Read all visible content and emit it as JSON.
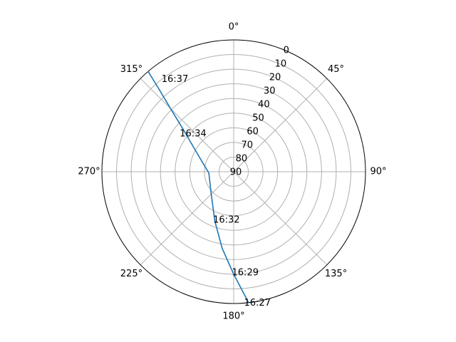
{
  "chart_data": {
    "type": "polar-line",
    "title": "",
    "theta_direction": "clockwise",
    "theta_zero": "north",
    "theta_ticks": [
      "0°",
      "45°",
      "90°",
      "135°",
      "180°",
      "225°",
      "270°",
      "315°"
    ],
    "theta_tick_values": [
      0,
      45,
      90,
      135,
      180,
      225,
      270,
      315
    ],
    "r_range": [
      90,
      0
    ],
    "r_ticks": [
      "0",
      "10",
      "20",
      "30",
      "40",
      "50",
      "60",
      "70",
      "80",
      "90"
    ],
    "r_tick_values": [
      0,
      10,
      20,
      30,
      40,
      50,
      60,
      70,
      80,
      90
    ],
    "r_label_angle": 22.5,
    "grid": true,
    "series": [
      {
        "name": "",
        "color": "#1f77b4",
        "points": [
          {
            "az": 173.5,
            "el": 0
          },
          {
            "az": 180.0,
            "el": 20
          },
          {
            "az": 188.5,
            "el": 37
          },
          {
            "az": 201.0,
            "el": 54
          },
          {
            "az": 224.0,
            "el": 68
          },
          {
            "az": 267.0,
            "el": 73
          },
          {
            "az": 298.0,
            "el": 61
          },
          {
            "az": 310.0,
            "el": 45
          },
          {
            "az": 315.0,
            "el": 29
          },
          {
            "az": 318.0,
            "el": 13
          },
          {
            "az": 319.5,
            "el": 0
          }
        ]
      }
    ],
    "annotations": [
      {
        "text": "16:27",
        "az": 175.5,
        "el": 0
      },
      {
        "text": "16:29",
        "az": 181.0,
        "el": 21
      },
      {
        "text": "16:32",
        "az": 203.0,
        "el": 54
      },
      {
        "text": "16:34",
        "az": 305.0,
        "el": 45
      },
      {
        "text": "16:37",
        "az": 322.0,
        "el": 10
      }
    ]
  }
}
